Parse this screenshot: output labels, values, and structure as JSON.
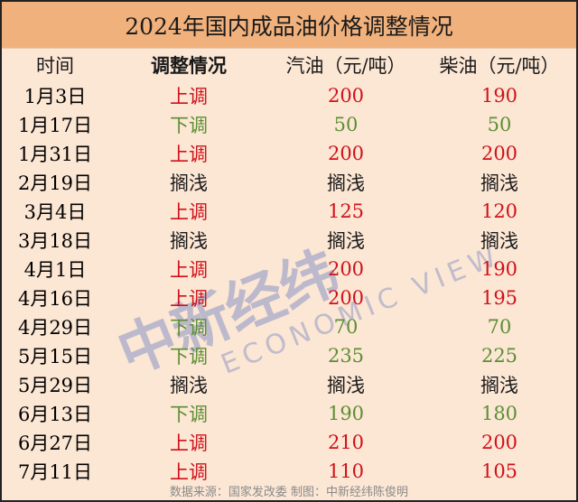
{
  "title": "2024年国内成品油价格调整情况",
  "headers": [
    "时间",
    "调整情况",
    "汽油（元/吨）",
    "柴油（元/吨）"
  ],
  "colors": {
    "up": "#d0121b",
    "down": "#5c8f33",
    "header_bg": "#f1b17c",
    "body_bg": "#fce6d4"
  },
  "rows": [
    {
      "date": "1月3日",
      "type": "上调",
      "gasoline": "200",
      "diesel": "190",
      "dir": "up"
    },
    {
      "date": "1月17日",
      "type": "下调",
      "gasoline": "50",
      "diesel": "50",
      "dir": "down"
    },
    {
      "date": "1月31日",
      "type": "上调",
      "gasoline": "200",
      "diesel": "200",
      "dir": "up"
    },
    {
      "date": "2月19日",
      "type": "搁浅",
      "gasoline": "搁浅",
      "diesel": "搁浅",
      "dir": "hold"
    },
    {
      "date": "3月4日",
      "type": "上调",
      "gasoline": "125",
      "diesel": "120",
      "dir": "up"
    },
    {
      "date": "3月18日",
      "type": "搁浅",
      "gasoline": "搁浅",
      "diesel": "搁浅",
      "dir": "hold"
    },
    {
      "date": "4月1日",
      "type": "上调",
      "gasoline": "200",
      "diesel": "190",
      "dir": "up"
    },
    {
      "date": "4月16日",
      "type": "上调",
      "gasoline": "200",
      "diesel": "195",
      "dir": "up"
    },
    {
      "date": "4月29日",
      "type": "下调",
      "gasoline": "70",
      "diesel": "70",
      "dir": "down"
    },
    {
      "date": "5月15日",
      "type": "下调",
      "gasoline": "235",
      "diesel": "225",
      "dir": "down"
    },
    {
      "date": "5月29日",
      "type": "搁浅",
      "gasoline": "搁浅",
      "diesel": "搁浅",
      "dir": "hold"
    },
    {
      "date": "6月13日",
      "type": "下调",
      "gasoline": "190",
      "diesel": "180",
      "dir": "down"
    },
    {
      "date": "6月27日",
      "type": "上调",
      "gasoline": "210",
      "diesel": "200",
      "dir": "up"
    },
    {
      "date": "7月11日",
      "type": "上调",
      "gasoline": "110",
      "diesel": "105",
      "dir": "up"
    }
  ],
  "footer": "数据来源：国家发改委  制图：中新经纬陈俊明",
  "watermark": {
    "cn": "中新经纬",
    "en": "ECONOMIC VIEW"
  }
}
